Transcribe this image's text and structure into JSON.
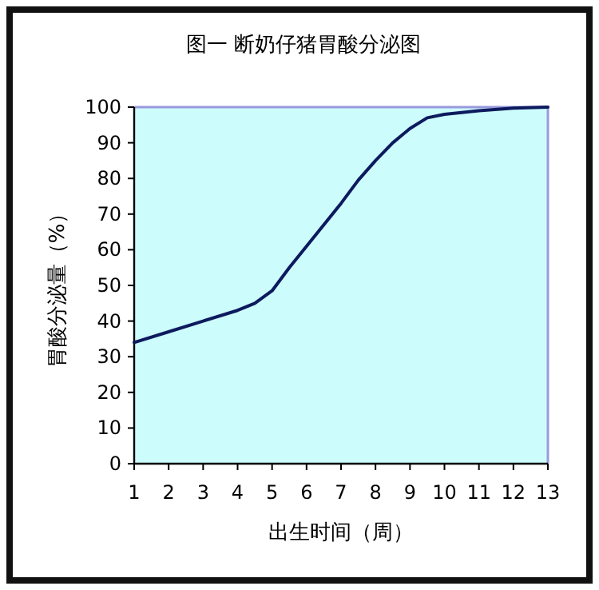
{
  "chart_data": {
    "type": "line",
    "title": "图一  断奶仔猪胃酸分泌图",
    "xlabel": "出生时间（周）",
    "ylabel": "胃酸分泌量（%）",
    "x": [
      1,
      2,
      3,
      4,
      4.5,
      5,
      5.5,
      6,
      7,
      7.5,
      8,
      8.5,
      9,
      9.5,
      10,
      11,
      12,
      13
    ],
    "series": [
      {
        "color": "#0d1a5e",
        "values": [
          34,
          37,
          40,
          43,
          45,
          48.5,
          55,
          61,
          73,
          79.5,
          85,
          90,
          94,
          97,
          98,
          99,
          99.7,
          100
        ]
      }
    ],
    "xlim": [
      1,
      13
    ],
    "ylim": [
      0,
      100
    ],
    "xticks": [
      1,
      2,
      3,
      4,
      5,
      6,
      7,
      8,
      9,
      10,
      11,
      12,
      13
    ],
    "yticks": [
      0,
      10,
      20,
      30,
      40,
      50,
      60,
      70,
      80,
      90,
      100
    ],
    "grid": false
  }
}
